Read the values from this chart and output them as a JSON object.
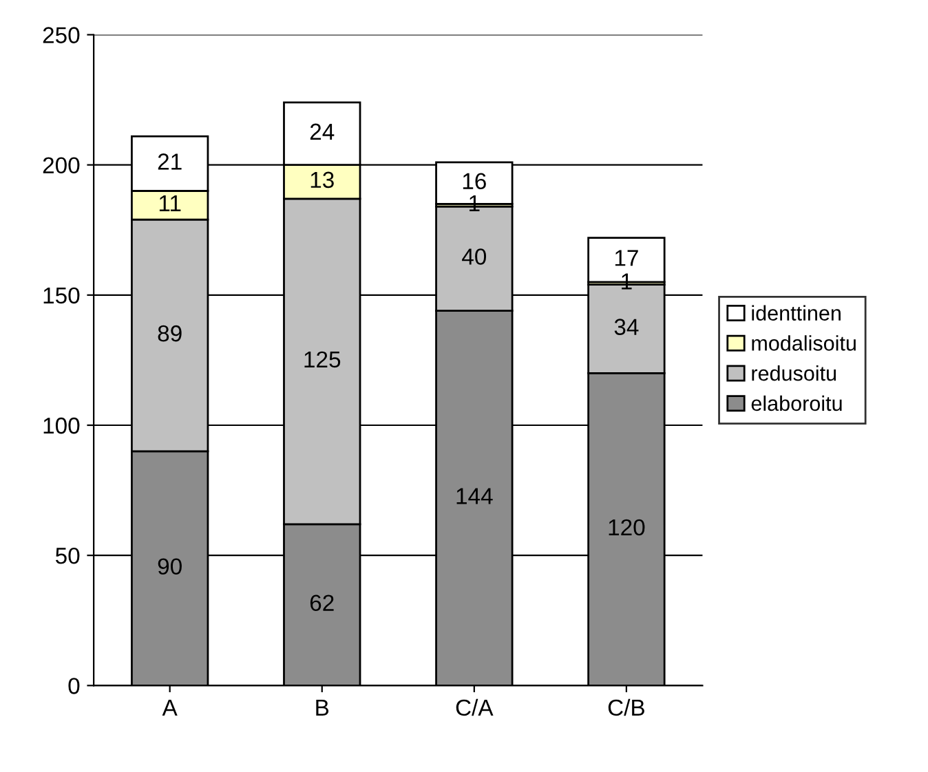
{
  "chart_data": {
    "type": "bar",
    "stacked": true,
    "categories": [
      "A",
      "B",
      "C/A",
      "C/B"
    ],
    "series": [
      {
        "name": "elaboroitu",
        "color": "#8c8c8c",
        "values": [
          90,
          62,
          144,
          120
        ]
      },
      {
        "name": "redusoitu",
        "color": "#c0c0c0",
        "values": [
          89,
          125,
          40,
          34
        ]
      },
      {
        "name": "modalisoitu",
        "color": "#ffffc0",
        "values": [
          11,
          13,
          1,
          1
        ]
      },
      {
        "name": "identtinen",
        "color": "#ffffff",
        "values": [
          21,
          24,
          16,
          17
        ]
      }
    ],
    "ylim": [
      0,
      250
    ],
    "yticks": [
      0,
      50,
      100,
      150,
      200,
      250
    ],
    "grid": "y",
    "legend": "right",
    "data_labels": true
  }
}
